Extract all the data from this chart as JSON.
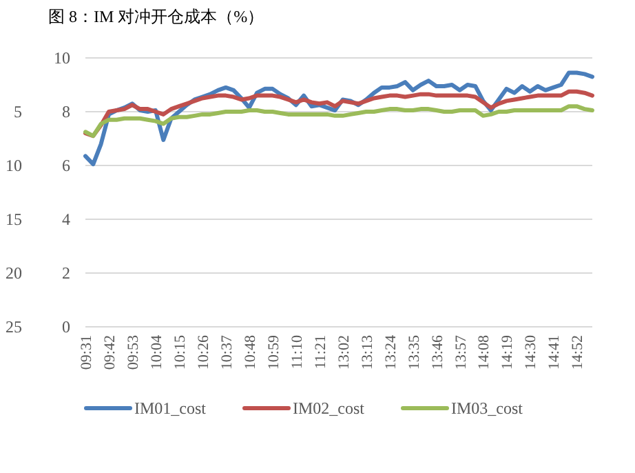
{
  "chart_data": {
    "type": "line",
    "title": "图 8：IM 对冲开仓成本（%）",
    "categories": [
      "09:31",
      null,
      null,
      "09:42",
      null,
      null,
      "09:53",
      null,
      null,
      "10:04",
      null,
      null,
      "10:15",
      null,
      null,
      "10:26",
      null,
      null,
      "10:37",
      null,
      null,
      "10:48",
      null,
      null,
      "10:59",
      null,
      null,
      "11:10",
      null,
      null,
      "11:21",
      null,
      null,
      "13:02",
      null,
      null,
      "13:13",
      null,
      null,
      "13:24",
      null,
      null,
      "13:35",
      null,
      null,
      "13:46",
      null,
      null,
      "13:57",
      null,
      null,
      "14:08",
      null,
      null,
      "14:19",
      null,
      null,
      "14:30",
      null,
      null,
      "14:41",
      null,
      null,
      "14:52",
      null,
      null
    ],
    "ylim": [
      0,
      10
    ],
    "yticks": [
      0,
      2,
      4,
      6,
      8,
      10
    ],
    "y2lim": [
      25,
      0
    ],
    "y2ticks": [
      25,
      20,
      15,
      10,
      5
    ],
    "grid": "y",
    "legend": "bottom",
    "line_style": "solid",
    "series": [
      {
        "name": "IM01_cost",
        "color": "#4a7ebb",
        "values": [
          6.35,
          6.05,
          6.8,
          7.9,
          8.05,
          8.15,
          8.3,
          8.05,
          8.0,
          8.05,
          6.95,
          7.75,
          8.0,
          8.25,
          8.45,
          8.55,
          8.65,
          8.8,
          8.9,
          8.8,
          8.5,
          8.15,
          8.7,
          8.85,
          8.85,
          8.65,
          8.5,
          8.25,
          8.6,
          8.2,
          8.25,
          8.15,
          8.05,
          8.45,
          8.4,
          8.25,
          8.45,
          8.7,
          8.9,
          8.9,
          8.95,
          9.1,
          8.8,
          9.0,
          9.15,
          8.95,
          8.95,
          9.0,
          8.8,
          9.0,
          8.95,
          8.4,
          8.05,
          8.45,
          8.85,
          8.7,
          8.95,
          8.75,
          8.95,
          8.8,
          8.9,
          9.0,
          9.45,
          9.45,
          9.4,
          9.3
        ]
      },
      {
        "name": "IM02_cost",
        "color": "#c0504d",
        "values": [
          7.2,
          7.1,
          7.5,
          8.0,
          8.05,
          8.1,
          8.25,
          8.1,
          8.1,
          8.0,
          7.9,
          8.1,
          8.2,
          8.3,
          8.4,
          8.5,
          8.55,
          8.6,
          8.6,
          8.55,
          8.45,
          8.5,
          8.6,
          8.6,
          8.6,
          8.55,
          8.45,
          8.35,
          8.45,
          8.35,
          8.3,
          8.35,
          8.2,
          8.4,
          8.35,
          8.3,
          8.4,
          8.5,
          8.55,
          8.6,
          8.6,
          8.55,
          8.6,
          8.65,
          8.65,
          8.6,
          8.6,
          8.6,
          8.6,
          8.6,
          8.55,
          8.35,
          8.15,
          8.3,
          8.4,
          8.45,
          8.5,
          8.55,
          8.6,
          8.6,
          8.6,
          8.6,
          8.75,
          8.75,
          8.7,
          8.6
        ]
      },
      {
        "name": "IM03_cost",
        "color": "#9bbb59",
        "values": [
          7.25,
          7.1,
          7.55,
          7.7,
          7.7,
          7.75,
          7.75,
          7.75,
          7.7,
          7.65,
          7.55,
          7.75,
          7.8,
          7.8,
          7.85,
          7.9,
          7.9,
          7.95,
          8.0,
          8.0,
          8.0,
          8.05,
          8.05,
          8.0,
          8.0,
          7.95,
          7.9,
          7.9,
          7.9,
          7.9,
          7.9,
          7.9,
          7.85,
          7.85,
          7.9,
          7.95,
          8.0,
          8.0,
          8.05,
          8.1,
          8.1,
          8.05,
          8.05,
          8.1,
          8.1,
          8.05,
          8.0,
          8.0,
          8.05,
          8.05,
          8.05,
          7.85,
          7.9,
          8.0,
          8.0,
          8.05,
          8.05,
          8.05,
          8.05,
          8.05,
          8.05,
          8.05,
          8.2,
          8.2,
          8.1,
          8.05
        ]
      }
    ]
  }
}
